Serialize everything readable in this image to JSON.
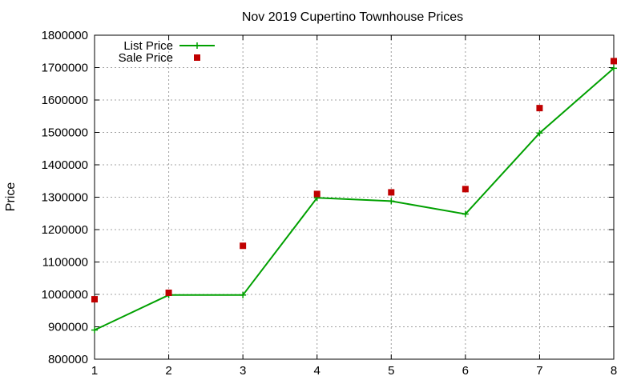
{
  "chart_data": {
    "type": "line",
    "title": "Nov 2019 Cupertino Townhouse Prices",
    "xlabel": "",
    "ylabel": "Price",
    "x": [
      1,
      2,
      3,
      4,
      5,
      6,
      7,
      8
    ],
    "xlim": [
      1,
      8
    ],
    "ylim": [
      800000,
      1800000
    ],
    "xticks": [
      "1",
      "2",
      "3",
      "4",
      "5",
      "6",
      "7",
      "8"
    ],
    "yticks": [
      "800000",
      "900000",
      "1000000",
      "1100000",
      "1200000",
      "1300000",
      "1400000",
      "1500000",
      "1600000",
      "1700000",
      "1800000"
    ],
    "grid": true,
    "legend_position": "top-left",
    "series": [
      {
        "name": "List Price",
        "style": "line-with-plus-markers",
        "color": "#00a000",
        "values": [
          890000,
          998000,
          998000,
          1298000,
          1288000,
          1248000,
          1498000,
          1698000
        ]
      },
      {
        "name": "Sale Price",
        "style": "square-points",
        "color": "#c00000",
        "values": [
          985000,
          1005000,
          1150000,
          1310000,
          1315000,
          1325000,
          1575000,
          1720000
        ]
      }
    ]
  }
}
